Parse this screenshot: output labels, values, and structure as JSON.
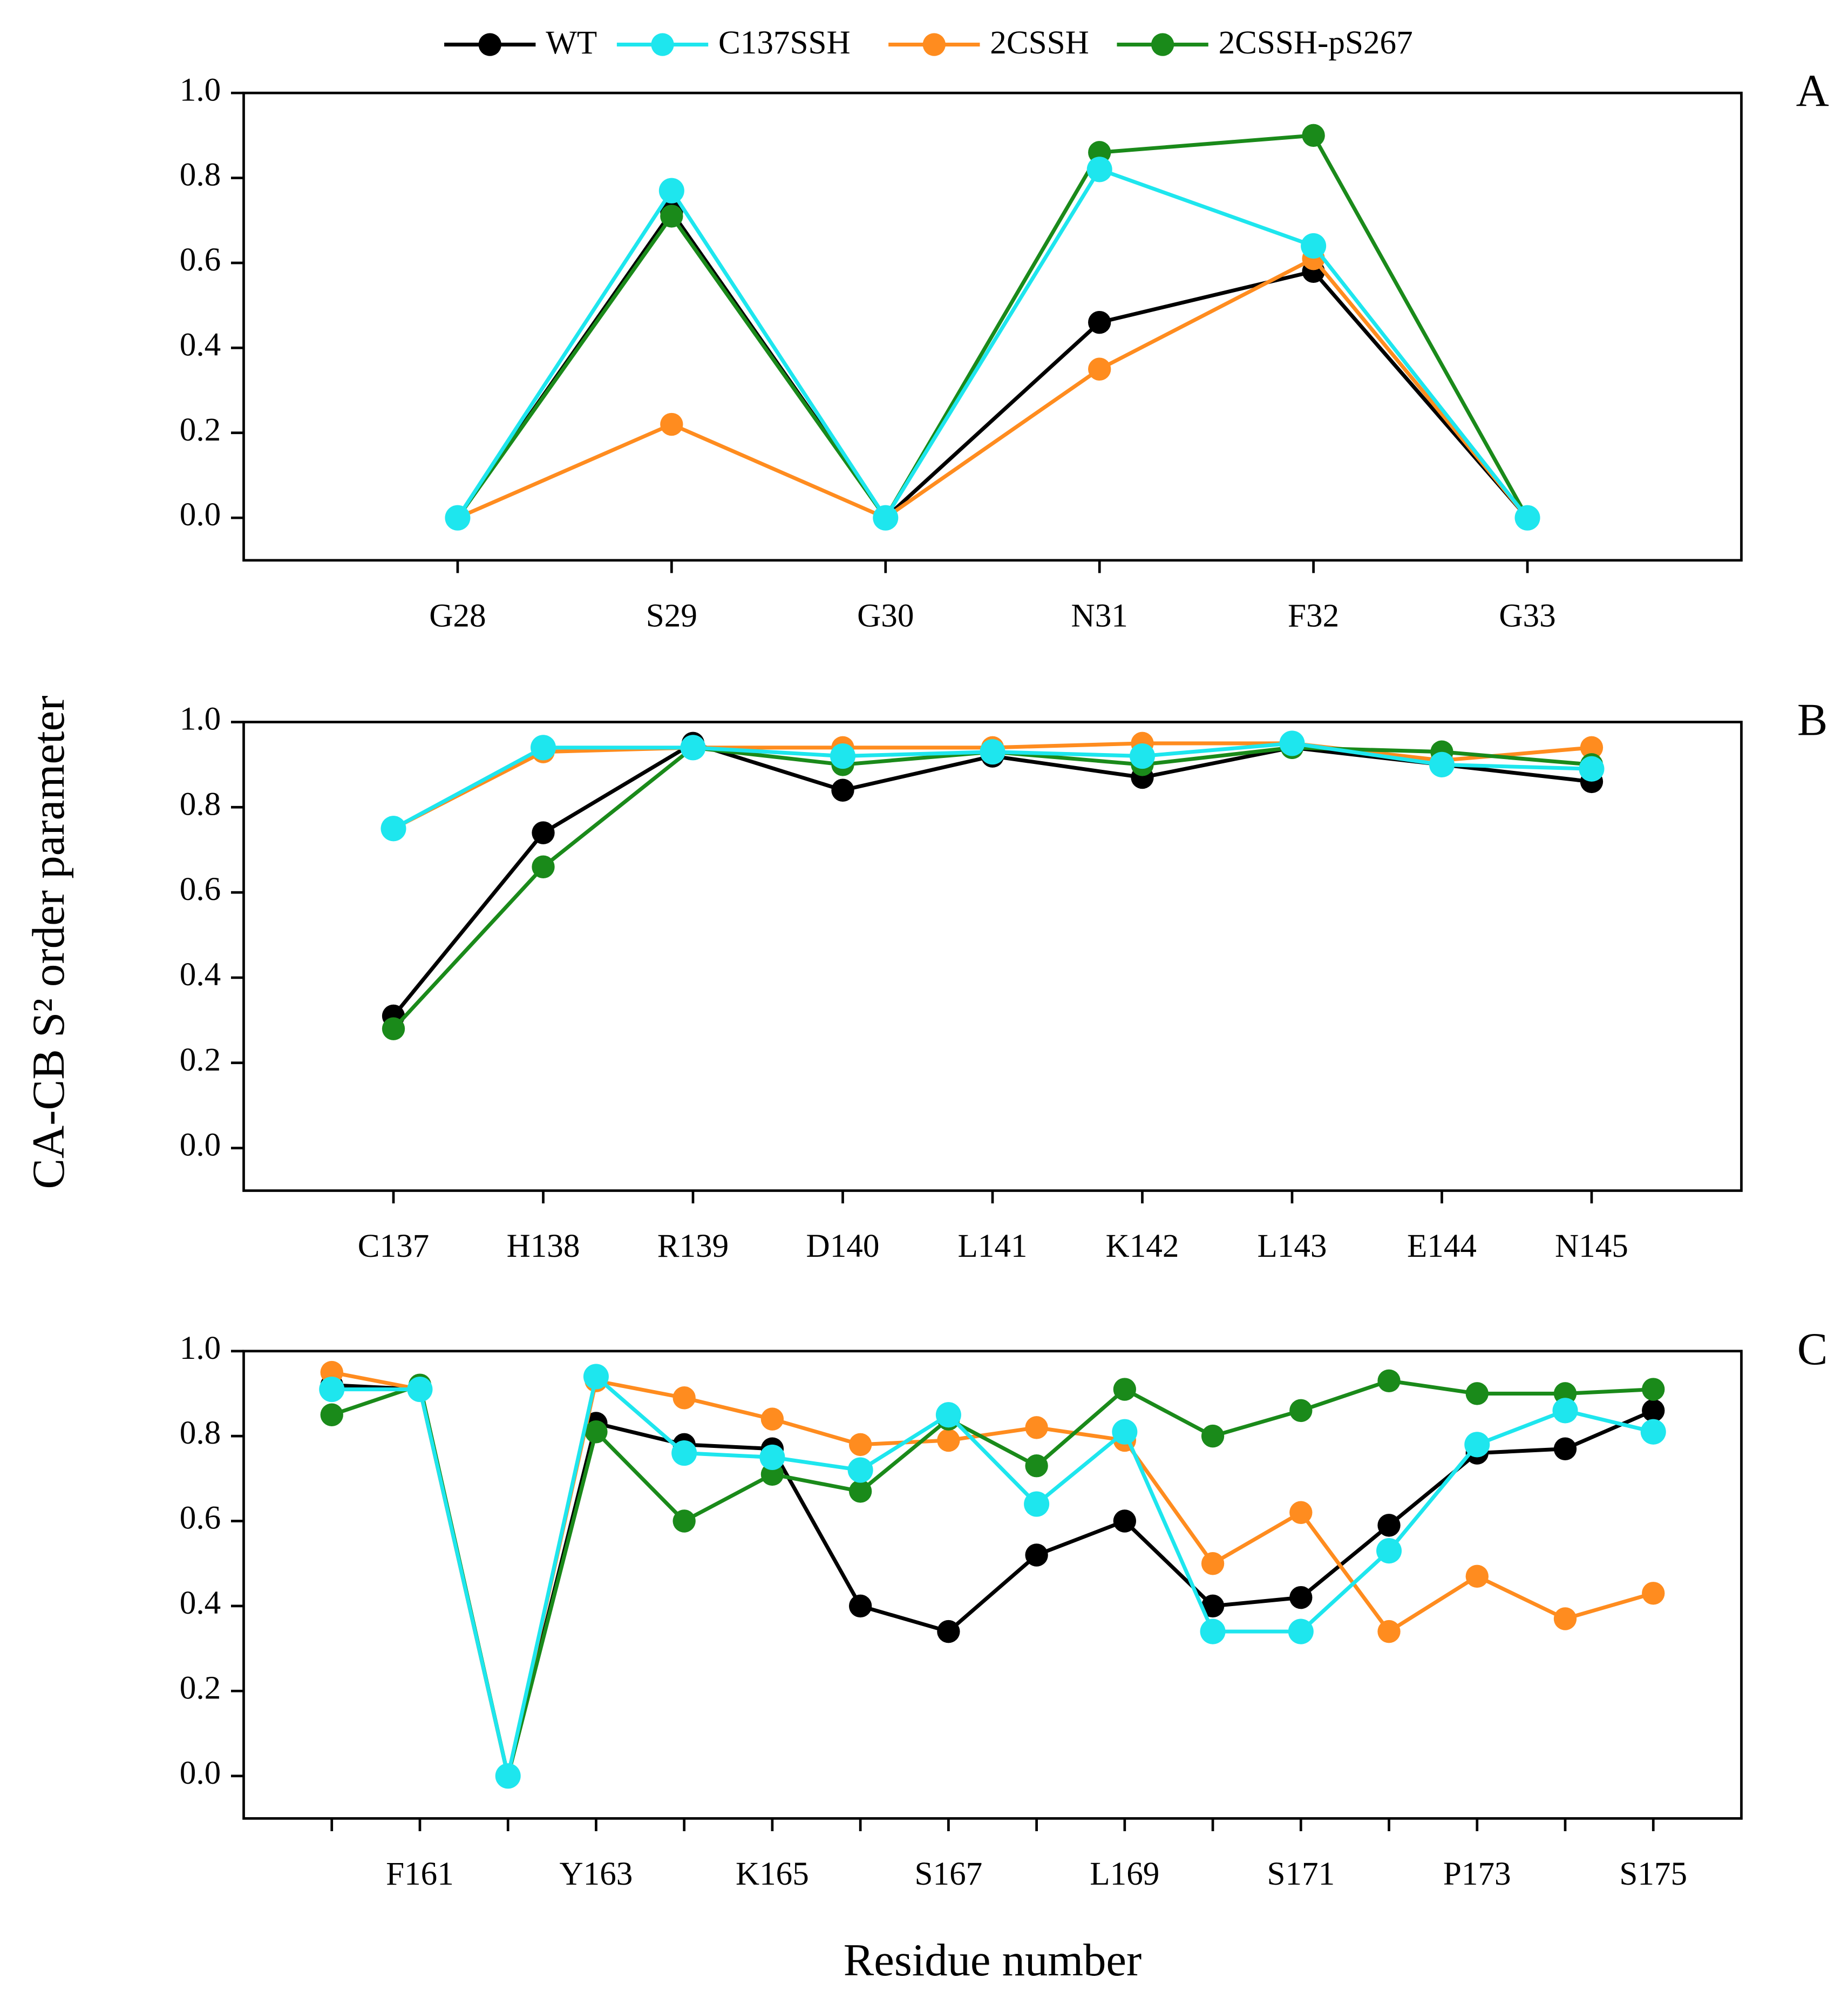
{
  "ylabel": "CA-CB S² order parameter",
  "xlabel": "Residue number",
  "chart_data": [
    {
      "type": "line",
      "title": "A",
      "categories": [
        "G28",
        "S29",
        "G30",
        "N31",
        "F32",
        "G33"
      ],
      "ylim": [
        -0.1,
        1.0
      ],
      "yticks": [
        {
          "value": 0,
          "label": "0.0"
        },
        {
          "value": 0.2,
          "label": "0.2"
        },
        {
          "value": 0.4,
          "label": "0.4"
        },
        {
          "value": 0.6,
          "label": "0.6"
        },
        {
          "value": 0.8,
          "label": "0.8"
        },
        {
          "value": 1,
          "label": "1.0"
        }
      ],
      "series": [
        {
          "name": "WT",
          "color": "#000000",
          "values": [
            0,
            0.72,
            0,
            0.46,
            0.58,
            0
          ]
        },
        {
          "name": "C137SSH",
          "color": "#1ee6ee",
          "values": [
            0,
            0.77,
            0,
            0.82,
            0.64,
            0
          ]
        },
        {
          "name": "2CSSH",
          "color": "#ff8c1f",
          "values": [
            0,
            0.22,
            0,
            0.35,
            0.61,
            0
          ]
        },
        {
          "name": "2CSSH-pS267",
          "color": "#1a8a1a",
          "values": [
            0,
            0.71,
            0,
            0.86,
            0.9,
            0
          ]
        }
      ]
    },
    {
      "type": "line",
      "title": "B",
      "categories": [
        "C137",
        "H138",
        "R139",
        "D140",
        "L141",
        "K142",
        "L143",
        "E144",
        "N145"
      ],
      "ylim": [
        -0.1,
        1.0
      ],
      "yticks": [
        {
          "value": 0,
          "label": "0.0"
        },
        {
          "value": 0.2,
          "label": "0.2"
        },
        {
          "value": 0.4,
          "label": "0.4"
        },
        {
          "value": 0.6,
          "label": "0.6"
        },
        {
          "value": 0.8,
          "label": "0.8"
        },
        {
          "value": 1,
          "label": "1.0"
        }
      ],
      "series": [
        {
          "name": "WT",
          "color": "#000000",
          "values": [
            0.31,
            0.74,
            0.95,
            0.84,
            0.92,
            0.87,
            0.94,
            0.9,
            0.86
          ]
        },
        {
          "name": "C137SSH",
          "color": "#1ee6ee",
          "values": [
            0.75,
            0.94,
            0.94,
            0.92,
            0.93,
            0.92,
            0.95,
            0.9,
            0.89
          ]
        },
        {
          "name": "2CSSH",
          "color": "#ff8c1f",
          "values": [
            0.75,
            0.93,
            0.94,
            0.94,
            0.94,
            0.95,
            0.95,
            0.91,
            0.94
          ]
        },
        {
          "name": "2CSSH-pS267",
          "color": "#1a8a1a",
          "values": [
            0.28,
            0.66,
            0.94,
            0.9,
            0.93,
            0.9,
            0.94,
            0.93,
            0.9
          ]
        }
      ]
    },
    {
      "type": "line",
      "title": "C",
      "categories": [
        null,
        "F161",
        null,
        "Y163",
        null,
        "K165",
        null,
        "S167",
        null,
        "L169",
        null,
        "S171",
        null,
        "P173",
        null,
        "S175"
      ],
      "ylim": [
        -0.1,
        1.0
      ],
      "yticks": [
        {
          "value": 0,
          "label": "0.0"
        },
        {
          "value": 0.2,
          "label": "0.2"
        },
        {
          "value": 0.4,
          "label": "0.4"
        },
        {
          "value": 0.6,
          "label": "0.6"
        },
        {
          "value": 0.8,
          "label": "0.8"
        },
        {
          "value": 1,
          "label": "1.0"
        }
      ],
      "series": [
        {
          "name": "WT",
          "color": "#000000",
          "values": [
            0.92,
            0.91,
            0,
            0.83,
            0.78,
            0.77,
            0.4,
            0.34,
            0.52,
            0.6,
            0.4,
            0.42,
            0.59,
            0.76,
            0.77,
            0.86
          ]
        },
        {
          "name": "C137SSH",
          "color": "#1ee6ee",
          "values": [
            0.91,
            0.91,
            0,
            0.94,
            0.76,
            0.75,
            0.72,
            0.85,
            0.64,
            0.81,
            0.34,
            0.34,
            0.53,
            0.78,
            0.86,
            0.81
          ]
        },
        {
          "name": "2CSSH",
          "color": "#ff8c1f",
          "values": [
            0.95,
            0.91,
            0,
            0.93,
            0.89,
            0.84,
            0.78,
            0.79,
            0.82,
            0.79,
            0.5,
            0.62,
            0.34,
            0.47,
            0.37,
            0.43
          ]
        },
        {
          "name": "2CSSH-pS267",
          "color": "#1a8a1a",
          "values": [
            0.85,
            0.92,
            0,
            0.81,
            0.6,
            0.71,
            0.67,
            0.84,
            0.73,
            0.91,
            0.8,
            0.86,
            0.93,
            0.9,
            0.9,
            0.91
          ]
        }
      ]
    }
  ]
}
